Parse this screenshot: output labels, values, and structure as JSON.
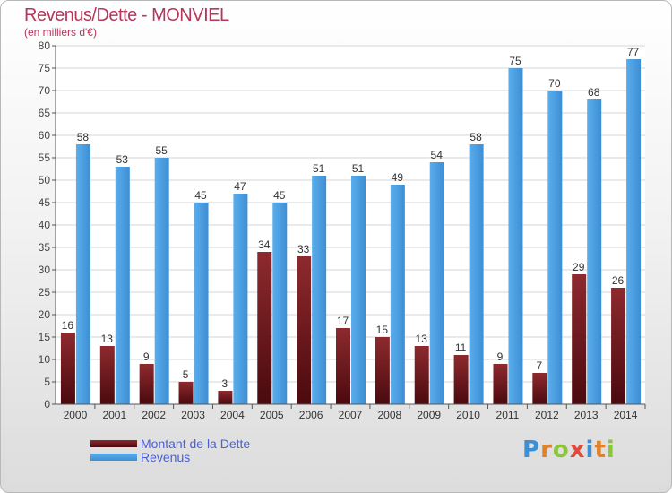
{
  "title": "Revenus/Dette - MONVIEL",
  "subtitle": "(en milliers d'€)",
  "colors": {
    "dette": "#7a1e22",
    "revenus": "#4f9fdf",
    "title": "#b5365b",
    "legend_text": "#4a5fd8"
  },
  "legend": {
    "dette_label": "Montant de la Dette",
    "revenus_label": "Revenus"
  },
  "logo": {
    "text": "Proxiti"
  },
  "chart_data": {
    "type": "bar",
    "title": "Revenus/Dette - MONVIEL",
    "subtitle": "(en milliers d'€)",
    "xlabel": "",
    "ylabel": "",
    "ylim": [
      0,
      80
    ],
    "yticks": [
      0,
      5,
      10,
      15,
      20,
      25,
      30,
      35,
      40,
      45,
      50,
      55,
      60,
      65,
      70,
      75,
      80
    ],
    "grid": true,
    "legend_position": "bottom-left",
    "categories": [
      "2000",
      "2001",
      "2002",
      "2003",
      "2004",
      "2005",
      "2006",
      "2007",
      "2008",
      "2009",
      "2010",
      "2011",
      "2012",
      "2013",
      "2014"
    ],
    "series": [
      {
        "name": "Montant de la Dette",
        "color": "#7a1e22",
        "values": [
          16,
          13,
          9,
          5,
          3,
          34,
          33,
          17,
          15,
          13,
          11,
          9,
          7,
          29,
          26
        ]
      },
      {
        "name": "Revenus",
        "color": "#4f9fdf",
        "values": [
          58,
          53,
          55,
          45,
          47,
          45,
          51,
          51,
          49,
          54,
          58,
          75,
          70,
          68,
          77
        ]
      }
    ]
  }
}
